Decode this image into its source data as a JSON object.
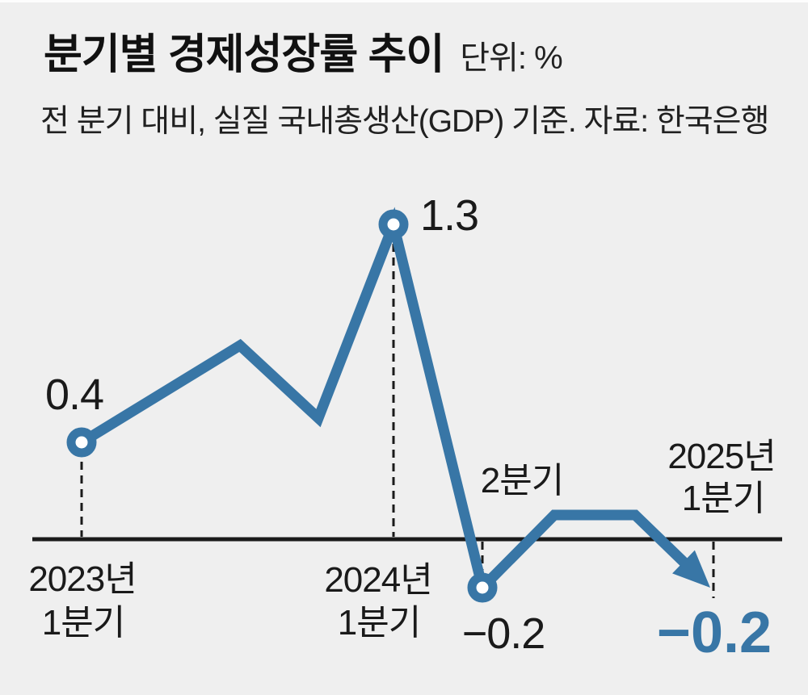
{
  "header": {
    "title": "분기별 경제성장률 추이",
    "unit_label": "단위: %",
    "subtitle": "전 분기 대비, 실질 국내총생산(GDP) 기준. 자료: 한국은행"
  },
  "colors": {
    "line_blue": "#3876A6",
    "label_black": "#1A1A1A",
    "background": "#EFEFEF",
    "marker_fill": "#FFFFFF"
  },
  "value_labels": {
    "q1_2023": "0.4",
    "q1_2024": "1.3",
    "q2_2024": "−0.2",
    "q1_2025": "−0.2"
  },
  "axis_labels": {
    "x2023_year": "2023년",
    "x2023_quarter": "1분기",
    "x2024_year": "2024년",
    "x2024_quarter": "1분기",
    "x2024q2": "2분기",
    "x2025_year": "2025년",
    "x2025_quarter": "1분기"
  },
  "chart_data": {
    "type": "line",
    "title": "분기별 경제성장률 추이",
    "unit": "%",
    "comparison_basis": "전 분기 대비, 실질 국내총생산(GDP) 기준",
    "source": "한국은행",
    "grid": false,
    "legend": false,
    "zero_baseline": true,
    "ylim": [
      -0.4,
      1.5
    ],
    "series": [
      {
        "name": "분기별 경제성장률 (전 분기 대비, %)",
        "points": [
          {
            "x_label": "2023년 1분기",
            "value": 0.4,
            "labeled": true,
            "marker": "open-circle"
          },
          {
            "x_label": "",
            "value": 0.8,
            "labeled": false,
            "estimated_from_plot": true
          },
          {
            "x_label": "",
            "value": 0.5,
            "labeled": false,
            "estimated_from_plot": true
          },
          {
            "x_label": "2024년 1분기",
            "value": 1.3,
            "labeled": true,
            "marker": "open-circle"
          },
          {
            "x_label": "2024년 2분기",
            "value": -0.2,
            "labeled": true,
            "marker": "open-circle"
          },
          {
            "x_label": "",
            "value": 0.1,
            "labeled": false,
            "estimated_from_plot": true
          },
          {
            "x_label": "",
            "value": 0.1,
            "labeled": false,
            "estimated_from_plot": true
          },
          {
            "x_label": "2025년 1분기",
            "value": -0.2,
            "labeled": true,
            "marker": "arrow-end"
          }
        ]
      }
    ]
  }
}
